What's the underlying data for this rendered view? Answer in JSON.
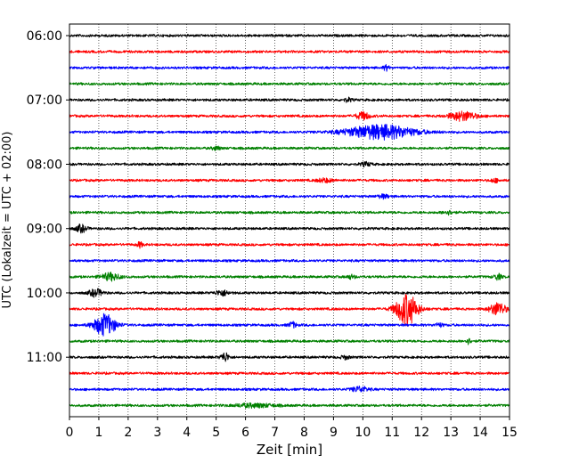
{
  "chart_data": {
    "type": "line",
    "title": "",
    "xlabel": "Zeit  [min]",
    "ylabel": "UTC (Lokalzeit = UTC + 02:00)",
    "xlim": [
      0,
      15
    ],
    "x_ticks": [
      "0",
      "1",
      "2",
      "3",
      "4",
      "5",
      "6",
      "7",
      "8",
      "9",
      "10",
      "11",
      "12",
      "13",
      "14",
      "15"
    ],
    "y_tick_labels": [
      "06:00",
      "07:00",
      "08:00",
      "09:00",
      "10:00",
      "11:00"
    ],
    "row_interval_minutes": 15,
    "grid": "vertical dotted at each minute",
    "trace_colors": [
      "#000000",
      "#ff0000",
      "#0000ff",
      "#008000"
    ],
    "rows": [
      {
        "time": "06:00",
        "events": []
      },
      {
        "time": "06:15",
        "events": []
      },
      {
        "time": "06:30",
        "events": [
          {
            "t": 10.8,
            "amp": 3,
            "dur": 0.2
          }
        ]
      },
      {
        "time": "06:45",
        "events": []
      },
      {
        "time": "07:00",
        "events": [
          {
            "t": 9.5,
            "amp": 2,
            "dur": 0.3
          }
        ]
      },
      {
        "time": "07:15",
        "events": [
          {
            "t": 10.0,
            "amp": 4,
            "dur": 0.5
          },
          {
            "t": 13.4,
            "amp": 5,
            "dur": 1.0
          }
        ]
      },
      {
        "time": "07:30",
        "events": [
          {
            "t": 10.6,
            "amp": 8,
            "dur": 2.5
          }
        ]
      },
      {
        "time": "07:45",
        "events": [
          {
            "t": 5.0,
            "amp": 2,
            "dur": 0.3
          }
        ]
      },
      {
        "time": "08:00",
        "events": [
          {
            "t": 10.1,
            "amp": 2,
            "dur": 0.4
          }
        ]
      },
      {
        "time": "08:15",
        "events": [
          {
            "t": 8.7,
            "amp": 2,
            "dur": 0.6
          },
          {
            "t": 14.5,
            "amp": 2,
            "dur": 0.3
          }
        ]
      },
      {
        "time": "08:30",
        "events": [
          {
            "t": 10.7,
            "amp": 2,
            "dur": 0.4
          }
        ]
      },
      {
        "time": "08:45",
        "events": [
          {
            "t": 12.9,
            "amp": 2,
            "dur": 0.4
          }
        ]
      },
      {
        "time": "09:00",
        "events": [
          {
            "t": 0.4,
            "amp": 4,
            "dur": 0.4
          }
        ]
      },
      {
        "time": "09:15",
        "events": [
          {
            "t": 2.4,
            "amp": 3,
            "dur": 0.2
          }
        ]
      },
      {
        "time": "09:30",
        "events": []
      },
      {
        "time": "09:45",
        "events": [
          {
            "t": 1.4,
            "amp": 4,
            "dur": 0.7
          },
          {
            "t": 9.6,
            "amp": 2,
            "dur": 0.3
          },
          {
            "t": 14.6,
            "amp": 3,
            "dur": 0.3
          }
        ]
      },
      {
        "time": "10:00",
        "events": [
          {
            "t": 0.9,
            "amp": 4,
            "dur": 0.5
          },
          {
            "t": 5.2,
            "amp": 3,
            "dur": 0.5
          }
        ]
      },
      {
        "time": "10:15",
        "events": [
          {
            "t": 11.5,
            "amp": 18,
            "dur": 0.8
          },
          {
            "t": 14.6,
            "amp": 7,
            "dur": 0.6
          }
        ]
      },
      {
        "time": "10:30",
        "events": [
          {
            "t": 1.2,
            "amp": 12,
            "dur": 0.8
          },
          {
            "t": 7.6,
            "amp": 3,
            "dur": 0.3
          },
          {
            "t": 12.6,
            "amp": 2,
            "dur": 0.3
          }
        ]
      },
      {
        "time": "10:45",
        "events": [
          {
            "t": 13.6,
            "amp": 3,
            "dur": 0.2
          }
        ]
      },
      {
        "time": "11:00",
        "events": [
          {
            "t": 5.3,
            "amp": 5,
            "dur": 0.3
          },
          {
            "t": 9.4,
            "amp": 2,
            "dur": 0.3
          }
        ]
      },
      {
        "time": "11:15",
        "events": []
      },
      {
        "time": "11:30",
        "events": [
          {
            "t": 9.9,
            "amp": 3,
            "dur": 0.6
          }
        ]
      },
      {
        "time": "11:45",
        "events": [
          {
            "t": 6.3,
            "amp": 2,
            "dur": 1.5
          }
        ]
      }
    ]
  }
}
